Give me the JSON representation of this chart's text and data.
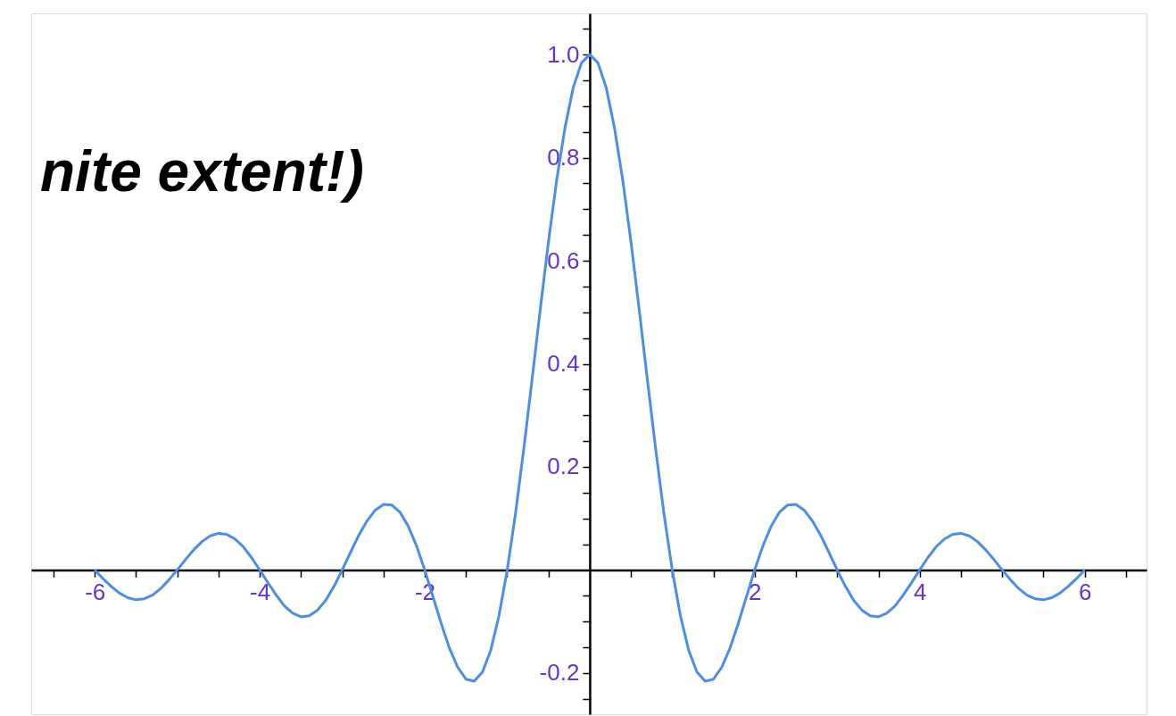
{
  "chart_data": {
    "type": "line",
    "annotations": [
      "nite extent!)"
    ],
    "x": [
      -6,
      -5.9,
      -5.8,
      -5.7,
      -5.6,
      -5.5,
      -5.4,
      -5.3,
      -5.2,
      -5.1,
      -5,
      -4.9,
      -4.8,
      -4.7,
      -4.6,
      -4.5,
      -4.4,
      -4.3,
      -4.2,
      -4.1,
      -4,
      -3.9,
      -3.8,
      -3.7,
      -3.6,
      -3.5,
      -3.4,
      -3.3,
      -3.2,
      -3.1,
      -3,
      -2.9,
      -2.8,
      -2.7,
      -2.6,
      -2.5,
      -2.4,
      -2.3,
      -2.2,
      -2.1,
      -2,
      -1.9,
      -1.8,
      -1.7,
      -1.6,
      -1.5,
      -1.4,
      -1.3,
      -1.2,
      -1.1,
      -1,
      -0.9,
      -0.8,
      -0.7,
      -0.6,
      -0.5,
      -0.4,
      -0.3,
      -0.2,
      -0.1,
      0,
      0.1,
      0.2,
      0.3,
      0.4,
      0.5,
      0.6,
      0.7,
      0.8,
      0.9,
      1,
      1.1,
      1.2,
      1.3,
      1.4,
      1.5,
      1.6,
      1.7,
      1.8,
      1.9,
      2,
      2.1,
      2.2,
      2.3,
      2.4,
      2.5,
      2.6,
      2.7,
      2.8,
      2.9,
      3,
      3.1,
      3.2,
      3.3,
      3.4,
      3.5,
      3.6,
      3.7,
      3.8,
      3.9,
      4,
      4.1,
      4.2,
      4.3,
      4.4,
      4.5,
      4.6,
      4.7,
      4.8,
      4.9,
      5,
      5.1,
      5.2,
      5.3,
      5.4,
      5.5,
      5.6,
      5.7,
      5.8,
      5.9,
      6
    ],
    "series": [
      {
        "color": "#4a8ee6",
        "values": [
          0,
          -0.017,
          -0.032,
          -0.045,
          -0.054,
          -0.058,
          -0.056,
          -0.049,
          -0.036,
          -0.019,
          0,
          0.02,
          0.039,
          0.055,
          0.066,
          0.071,
          0.069,
          0.06,
          0.045,
          0.024,
          0,
          -0.025,
          -0.049,
          -0.07,
          -0.084,
          -0.091,
          -0.089,
          -0.078,
          -0.059,
          -0.032,
          0,
          0.034,
          0.067,
          0.095,
          0.116,
          0.127,
          0.126,
          0.112,
          0.085,
          0.047,
          0,
          -0.052,
          -0.104,
          -0.152,
          -0.189,
          -0.212,
          -0.216,
          -0.198,
          -0.156,
          -0.089,
          0,
          0.109,
          0.234,
          0.368,
          0.505,
          0.637,
          0.757,
          0.858,
          0.936,
          0.984,
          1,
          0.984,
          0.936,
          0.858,
          0.757,
          0.637,
          0.505,
          0.368,
          0.234,
          0.109,
          0,
          -0.089,
          -0.156,
          -0.198,
          -0.216,
          -0.212,
          -0.189,
          -0.152,
          -0.104,
          -0.052,
          0,
          0.047,
          0.085,
          0.112,
          0.126,
          0.127,
          0.116,
          0.095,
          0.067,
          0.034,
          0,
          -0.032,
          -0.059,
          -0.078,
          -0.089,
          -0.091,
          -0.084,
          -0.07,
          -0.049,
          -0.025,
          0,
          0.024,
          0.045,
          0.06,
          0.069,
          0.071,
          0.066,
          0.055,
          0.039,
          0.02,
          0,
          -0.019,
          -0.036,
          -0.049,
          -0.056,
          -0.058,
          -0.054,
          -0.045,
          -0.032,
          -0.017,
          0
        ]
      }
    ],
    "xlim": [
      -6.77,
      6.75
    ],
    "ylim": [
      -0.28,
      1.08
    ],
    "xticks": [
      {
        "value": -6.5,
        "label": null
      },
      -6,
      {
        "value": -5.5,
        "label": null
      },
      {
        "value": -5,
        "label": null
      },
      {
        "value": -4.5,
        "label": null
      },
      -4,
      {
        "value": -3.5,
        "label": null
      },
      {
        "value": -3,
        "label": null
      },
      {
        "value": -2.5,
        "label": null
      },
      -2,
      {
        "value": -1.5,
        "label": null
      },
      {
        "value": -1,
        "label": null
      },
      {
        "value": -0.5,
        "label": null
      },
      {
        "value": 0.5,
        "label": null
      },
      {
        "value": 1,
        "label": null
      },
      {
        "value": 1.5,
        "label": null
      },
      2,
      {
        "value": 2.5,
        "label": null
      },
      {
        "value": 3,
        "label": null
      },
      {
        "value": 3.5,
        "label": null
      },
      4,
      {
        "value": 4.5,
        "label": null
      },
      {
        "value": 5,
        "label": null
      },
      {
        "value": 5.5,
        "label": null
      },
      6,
      {
        "value": 6.5,
        "label": null
      }
    ],
    "yticks": [
      {
        "value": -0.25,
        "label": null
      },
      -0.2,
      {
        "value": -0.15,
        "label": null
      },
      {
        "value": -0.1,
        "label": null
      },
      {
        "value": -0.05,
        "label": null
      },
      {
        "value": 0.05,
        "label": null
      },
      {
        "value": 0.1,
        "label": null
      },
      {
        "value": 0.15,
        "label": null
      },
      0.2,
      {
        "value": 0.25,
        "label": null
      },
      {
        "value": 0.3,
        "label": null
      },
      {
        "value": 0.35,
        "label": null
      },
      0.4,
      {
        "value": 0.45,
        "label": null
      },
      {
        "value": 0.5,
        "label": null
      },
      {
        "value": 0.55,
        "label": null
      },
      0.6,
      {
        "value": 0.65,
        "label": null
      },
      {
        "value": 0.7,
        "label": null
      },
      {
        "value": 0.75,
        "label": null
      },
      0.8,
      {
        "value": 0.85,
        "label": null
      },
      {
        "value": 0.9,
        "label": null
      },
      {
        "value": 0.95,
        "label": null
      },
      {
        "value": 1,
        "label": "1.0"
      },
      {
        "value": 1.05,
        "label": null
      }
    ],
    "grid": false,
    "line_style": "solid",
    "marker": "none"
  }
}
